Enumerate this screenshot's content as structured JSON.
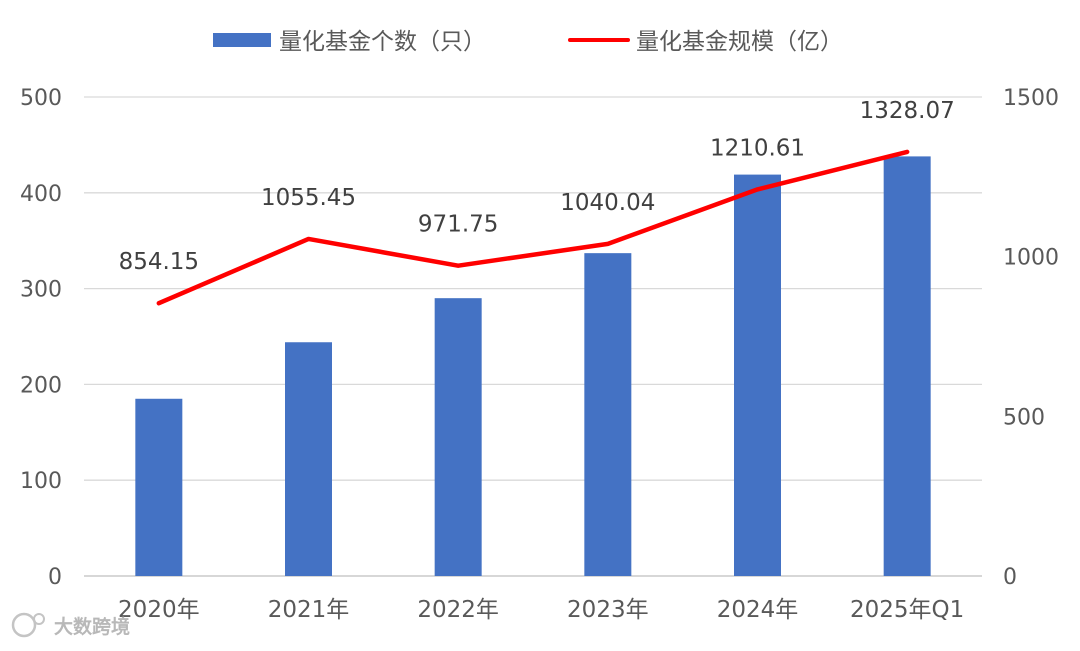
{
  "chart_data": {
    "type": "bar",
    "categories": [
      "2020年",
      "2021年",
      "2022年",
      "2023年",
      "2024年",
      "2025年Q1"
    ],
    "series": [
      {
        "name": "量化基金个数（只）",
        "type": "bar",
        "axis": "left",
        "color": "#4472C4",
        "values": [
          185,
          244,
          290,
          337,
          419,
          438
        ]
      },
      {
        "name": "量化基金规模（亿）",
        "type": "line",
        "axis": "right",
        "color": "#FF0000",
        "values": [
          854.15,
          1055.45,
          971.75,
          1040.04,
          1210.61,
          1328.07
        ],
        "data_labels": [
          "854.15",
          "1055.45",
          "971.75",
          "1040.04",
          "1210.61",
          "1328.07"
        ]
      }
    ],
    "y_left": {
      "ylim": [
        0,
        500
      ],
      "ticks": [
        0,
        100,
        200,
        300,
        400,
        500
      ]
    },
    "y_right": {
      "ylim": [
        0,
        1500
      ],
      "ticks": [
        0,
        500,
        1000,
        1500
      ]
    },
    "grid": true,
    "legend": "top-center"
  },
  "watermark": {
    "text": "大数跨境"
  }
}
